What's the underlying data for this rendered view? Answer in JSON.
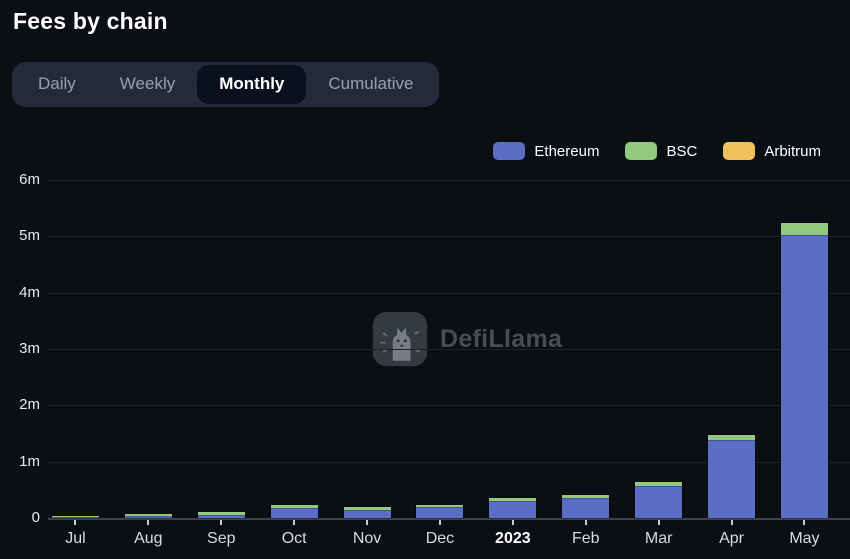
{
  "page": {
    "title": "Fees by chain"
  },
  "tabs": {
    "items": [
      {
        "label": "Daily",
        "active": false
      },
      {
        "label": "Weekly",
        "active": false
      },
      {
        "label": "Monthly",
        "active": true
      },
      {
        "label": "Cumulative",
        "active": false
      }
    ]
  },
  "legend": {
    "items": [
      {
        "label": "Ethereum",
        "color": "#5b6ec5"
      },
      {
        "label": "BSC",
        "color": "#91c97f"
      },
      {
        "label": "Arbitrum",
        "color": "#f0c15c"
      }
    ]
  },
  "watermark": {
    "label": "DefiLlama"
  },
  "chart_data": {
    "type": "bar",
    "stacked": true,
    "title": "Fees by chain",
    "unit": "millions",
    "categories": [
      "Jul",
      "Aug",
      "Sep",
      "Oct",
      "Nov",
      "Dec",
      "2023",
      "Feb",
      "Mar",
      "Apr",
      "May"
    ],
    "emphasized_category": "2023",
    "series": [
      {
        "name": "Ethereum",
        "color": "#5b6ec5",
        "values": [
          0.01,
          0.04,
          0.06,
          0.18,
          0.15,
          0.19,
          0.3,
          0.35,
          0.57,
          1.38,
          5.02
        ]
      },
      {
        "name": "BSC",
        "color": "#91c97f",
        "values": [
          0.01,
          0.03,
          0.04,
          0.05,
          0.05,
          0.04,
          0.06,
          0.06,
          0.07,
          0.1,
          0.22
        ]
      },
      {
        "name": "Arbitrum",
        "color": "#f0c15c",
        "values": [
          0,
          0,
          0,
          0,
          0,
          0,
          0,
          0,
          0,
          0,
          0
        ]
      }
    ],
    "xlabel": "",
    "ylabel": "",
    "ylim": [
      0,
      6000000
    ],
    "ytick_values_m": [
      0,
      1,
      2,
      3,
      4,
      5,
      6
    ],
    "ytick_labels": [
      "0",
      "1m",
      "2m",
      "3m",
      "4m",
      "5m",
      "6m"
    ],
    "grid": "horizontal",
    "legend_position": "top-right"
  }
}
